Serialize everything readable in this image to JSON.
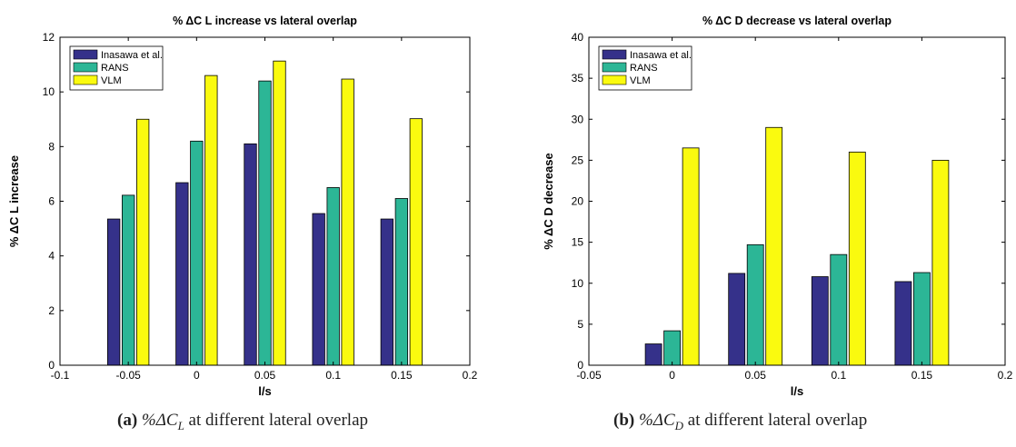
{
  "chart_data": [
    {
      "type": "bar",
      "title": "% ΔC L increase vs lateral overlap",
      "xlabel": "l/s",
      "ylabel": "% ΔC L increase",
      "xlim": [
        -0.1,
        0.2
      ],
      "ylim": [
        0,
        12
      ],
      "xticks": [
        -0.1,
        -0.05,
        0,
        0.05,
        0.1,
        0.15,
        0.2
      ],
      "xtick_labels": [
        "-0.1",
        "-0.05",
        "0",
        "0.05",
        "0.1",
        "0.15",
        "0.2"
      ],
      "yticks": [
        0,
        2,
        4,
        6,
        8,
        10,
        12
      ],
      "ytick_labels": [
        "0",
        "2",
        "4",
        "6",
        "8",
        "10",
        "12"
      ],
      "categories": [
        -0.05,
        0,
        0.05,
        0.1,
        0.15
      ],
      "grid": false,
      "legend_position": "top-left",
      "series": [
        {
          "name": "Inasawa et al.",
          "color": "#35318a",
          "values": [
            5.35,
            6.68,
            8.1,
            5.55,
            5.35
          ]
        },
        {
          "name": "RANS",
          "color": "#2cb696",
          "values": [
            6.22,
            8.2,
            10.4,
            6.5,
            6.1
          ]
        },
        {
          "name": "VLM",
          "color": "#fafa0f",
          "values": [
            9.0,
            10.6,
            11.13,
            10.47,
            9.02
          ]
        }
      ]
    },
    {
      "type": "bar",
      "title": "% ΔC D decrease vs lateral overlap",
      "xlabel": "l/s",
      "ylabel": "% ΔC D decrease",
      "xlim": [
        -0.05,
        0.2
      ],
      "ylim": [
        0,
        40
      ],
      "xticks": [
        -0.05,
        0,
        0.05,
        0.1,
        0.15,
        0.2
      ],
      "xtick_labels": [
        "-0.05",
        "0",
        "0.05",
        "0.1",
        "0.15",
        "0.2"
      ],
      "yticks": [
        0,
        5,
        10,
        15,
        20,
        25,
        30,
        35,
        40
      ],
      "ytick_labels": [
        "0",
        "5",
        "10",
        "15",
        "20",
        "25",
        "30",
        "35",
        "40"
      ],
      "categories": [
        0,
        0.05,
        0.1,
        0.15
      ],
      "grid": false,
      "legend_position": "top-left",
      "series": [
        {
          "name": "Inasawa et al.",
          "color": "#35318a",
          "values": [
            2.6,
            11.2,
            10.8,
            10.2
          ]
        },
        {
          "name": "RANS",
          "color": "#2cb696",
          "values": [
            4.2,
            14.7,
            13.5,
            11.3
          ]
        },
        {
          "name": "VLM",
          "color": "#fafa0f",
          "values": [
            26.5,
            29.0,
            26.0,
            25.0
          ]
        }
      ]
    }
  ],
  "captions": [
    {
      "label": "(a)",
      "sym": "%ΔC",
      "sub": "L",
      "text": " at different lateral overlap"
    },
    {
      "label": "(b)",
      "sym": "%ΔC",
      "sub": "D",
      "text": " at different lateral overlap"
    }
  ]
}
